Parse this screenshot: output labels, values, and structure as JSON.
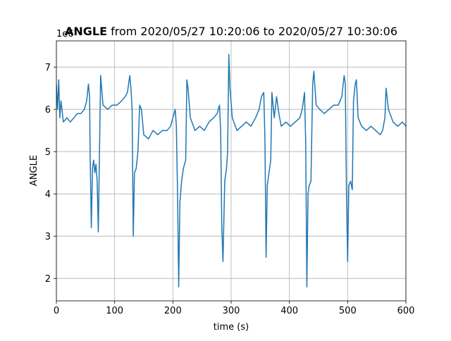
{
  "chart_data": {
    "type": "line",
    "title": "ANGLE",
    "subtitle": "from 2020/05/27 10:20:06 to 2020/05/27 10:30:06",
    "x_label": "time (s)",
    "y_label": "ANGLE",
    "y_offset_label": "1e6",
    "x": [
      0,
      2,
      4,
      6,
      8,
      12,
      18,
      24,
      30,
      36,
      42,
      48,
      52,
      55,
      57,
      58,
      60,
      62,
      64,
      66,
      68,
      70,
      72,
      74,
      76,
      80,
      88,
      96,
      104,
      112,
      118,
      122,
      126,
      128,
      130,
      132,
      134,
      137,
      140,
      143,
      146,
      150,
      158,
      166,
      174,
      182,
      190,
      196,
      200,
      204,
      206,
      208,
      210,
      212,
      215,
      218,
      222,
      224,
      226,
      230,
      238,
      246,
      254,
      262,
      270,
      276,
      280,
      282,
      284,
      286,
      289,
      292,
      294,
      296,
      298,
      302,
      310,
      318,
      326,
      334,
      342,
      348,
      352,
      356,
      358,
      360,
      362,
      365,
      368,
      370,
      374,
      378,
      382,
      386,
      394,
      402,
      410,
      418,
      422,
      426,
      428,
      430,
      432,
      434,
      437,
      440,
      442,
      446,
      452,
      460,
      468,
      476,
      484,
      490,
      494,
      496,
      498,
      500,
      502,
      505,
      508,
      510,
      513,
      515,
      518,
      524,
      532,
      540,
      548,
      556,
      560,
      564,
      566,
      570,
      578,
      586,
      594,
      600
    ],
    "series": [
      {
        "name": "ANGLE",
        "color": "#1f77b4",
        "values": [
          6.6,
          6.0,
          6.7,
          5.8,
          6.2,
          5.7,
          5.8,
          5.7,
          5.8,
          5.9,
          5.9,
          6.0,
          6.2,
          6.6,
          6.3,
          4.9,
          3.2,
          4.6,
          4.8,
          4.5,
          4.7,
          4.3,
          3.1,
          5.0,
          6.8,
          6.1,
          6.0,
          6.1,
          6.1,
          6.2,
          6.3,
          6.4,
          6.8,
          6.5,
          6.0,
          3.0,
          4.5,
          4.6,
          5.0,
          6.1,
          6.0,
          5.4,
          5.3,
          5.5,
          5.4,
          5.5,
          5.5,
          5.6,
          5.8,
          6.0,
          5.6,
          4.0,
          1.8,
          3.8,
          4.3,
          4.6,
          4.8,
          6.7,
          6.5,
          5.8,
          5.5,
          5.6,
          5.5,
          5.7,
          5.8,
          5.9,
          6.1,
          5.5,
          3.2,
          2.4,
          4.3,
          4.6,
          5.0,
          7.3,
          6.5,
          5.8,
          5.5,
          5.6,
          5.7,
          5.6,
          5.8,
          6.0,
          6.3,
          6.4,
          5.3,
          2.5,
          4.2,
          4.5,
          4.8,
          6.4,
          5.8,
          6.3,
          5.9,
          5.6,
          5.7,
          5.6,
          5.7,
          5.8,
          6.0,
          6.4,
          5.2,
          1.8,
          4.0,
          4.2,
          4.3,
          6.6,
          6.9,
          6.1,
          6.0,
          5.9,
          6.0,
          6.1,
          6.1,
          6.3,
          6.8,
          6.6,
          4.0,
          2.4,
          4.2,
          4.3,
          4.1,
          6.2,
          6.6,
          6.7,
          5.8,
          5.6,
          5.5,
          5.6,
          5.5,
          5.4,
          5.5,
          5.8,
          6.5,
          6.0,
          5.7,
          5.6,
          5.7,
          5.6
        ]
      }
    ],
    "xlim": [
      0,
      600
    ],
    "ylim": [
      1.47,
      7.62
    ],
    "xticks": [
      0,
      100,
      200,
      300,
      400,
      500,
      600
    ],
    "yticks": [
      2,
      3,
      4,
      5,
      6,
      7
    ],
    "grid": true
  }
}
